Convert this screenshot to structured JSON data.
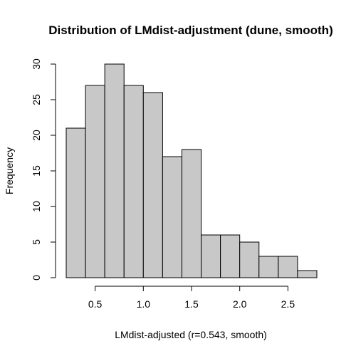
{
  "chart_data": {
    "type": "bar",
    "title": "Distribution of LMdist-adjustment (dune, smooth)",
    "xlabel": "LMdist-adjusted (r=0.543, smooth)",
    "ylabel": "Frequency",
    "bin_edges": [
      0.2,
      0.4,
      0.6,
      0.8,
      1.0,
      1.2,
      1.4,
      1.6,
      1.8,
      2.0,
      2.2,
      2.4,
      2.6,
      2.8
    ],
    "values": [
      21,
      27,
      30,
      27,
      26,
      17,
      18,
      6,
      6,
      5,
      3,
      3,
      1
    ],
    "xlim": [
      0.2,
      2.8
    ],
    "ylim": [
      0,
      30
    ],
    "xticks": [
      0.5,
      1.0,
      1.5,
      2.0,
      2.5
    ],
    "xtick_labels": [
      "0.5",
      "1.0",
      "1.5",
      "2.0",
      "2.5"
    ],
    "yticks": [
      0,
      5,
      10,
      15,
      20,
      25,
      30
    ],
    "ytick_labels": [
      "0",
      "5",
      "10",
      "15",
      "20",
      "25",
      "30"
    ],
    "bar_color": "#c8c8c8",
    "edge_color": "#000000",
    "grid": false,
    "legend": "none"
  }
}
